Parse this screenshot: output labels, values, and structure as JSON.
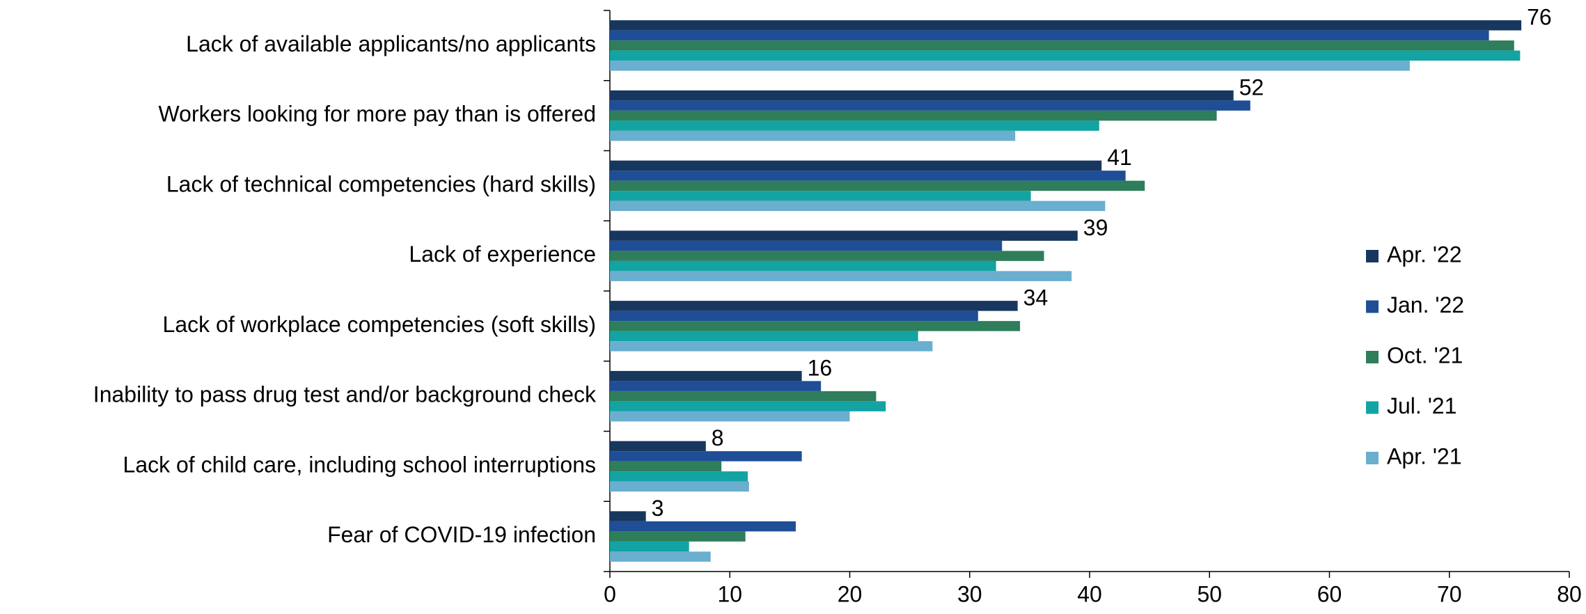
{
  "chart_data": {
    "type": "hbar",
    "categories": [
      "Lack of available applicants/no applicants",
      "Workers looking for more pay than is offered",
      "Lack of technical competencies (hard skills)",
      "Lack of experience",
      "Lack of workplace competencies (soft skills)",
      "Inability to pass drug test and/or background check",
      "Lack of child care, including school interruptions",
      "Fear of COVID-19 infection"
    ],
    "series": [
      {
        "name": "Apr. '22",
        "color": "#17375e",
        "values": [
          76,
          52,
          41,
          39,
          34,
          16,
          8,
          3
        ]
      },
      {
        "name": "Jan. '22",
        "color": "#1f4e96",
        "values": [
          73.3,
          53.4,
          43.0,
          32.7,
          30.7,
          17.6,
          16.0,
          15.5
        ]
      },
      {
        "name": "Oct. '21",
        "color": "#2e7d5b",
        "values": [
          75.4,
          50.6,
          44.6,
          36.2,
          34.2,
          22.2,
          9.3,
          11.3
        ]
      },
      {
        "name": "Jul. '21",
        "color": "#13a3a3",
        "values": [
          75.9,
          40.8,
          35.1,
          32.2,
          25.7,
          23.0,
          11.5,
          6.6
        ]
      },
      {
        "name": "Apr. '21",
        "color": "#6aaed0",
        "values": [
          66.7,
          33.8,
          41.3,
          38.5,
          26.9,
          20.0,
          11.6,
          8.4
        ]
      }
    ],
    "xlim": [
      0,
      80
    ],
    "xticks": [
      0,
      10,
      20,
      30,
      40,
      50,
      60,
      70,
      80
    ],
    "grid": false,
    "legend": "right"
  }
}
